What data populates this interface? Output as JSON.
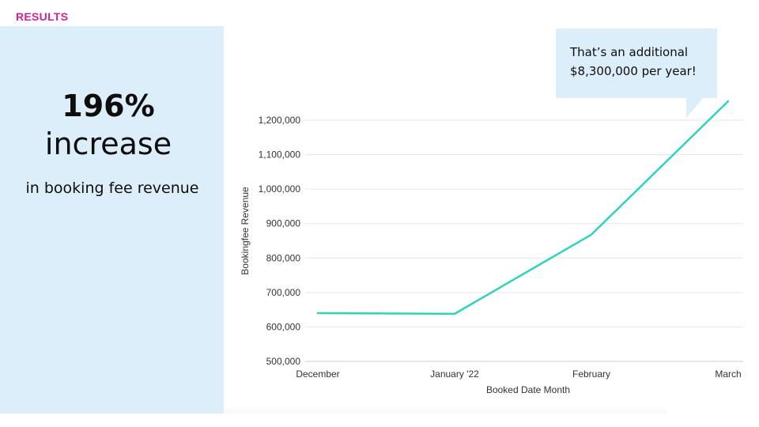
{
  "header": {
    "section_label": "RESULTS"
  },
  "highlight": {
    "percent": "196%",
    "word": "increase",
    "caption": "in booking fee revenue"
  },
  "callout": {
    "line1": "That’s an additional",
    "line2": "$8,300,000 per year!"
  },
  "colors": {
    "accent": "#d0219a",
    "panel": "#ddeefb",
    "line": "#2ed3bd",
    "grid": "#e6e6e6"
  },
  "chart_data": {
    "type": "line",
    "title": "",
    "xlabel": "Booked Date Month",
    "ylabel": "Bookingfee Revenue",
    "categories": [
      "December",
      "January '22",
      "February",
      "March"
    ],
    "series": [
      {
        "name": "Bookingfee Revenue",
        "values": [
          640000,
          638000,
          868000,
          1255000
        ]
      }
    ],
    "ylim": [
      500000,
      1200000
    ],
    "yticks": [
      500000,
      600000,
      700000,
      800000,
      900000,
      1000000,
      1100000,
      1200000
    ],
    "ytick_labels": [
      "500,000",
      "600,000",
      "700,000",
      "800,000",
      "900,000",
      "1,000,000",
      "1,100,000",
      "1,200,000"
    ],
    "grid": true,
    "legend": "none"
  }
}
